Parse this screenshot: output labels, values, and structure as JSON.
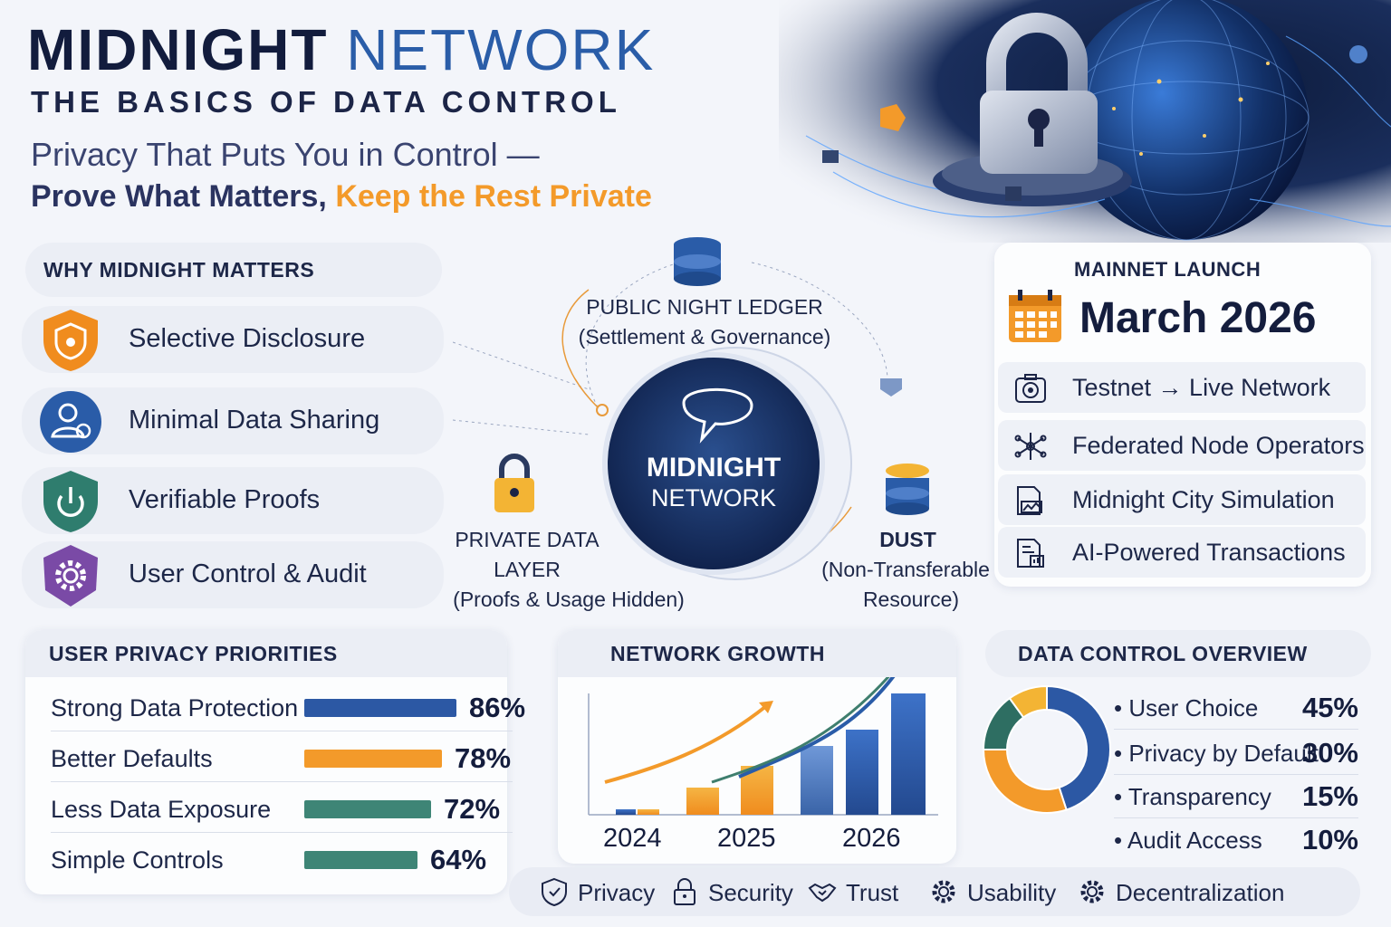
{
  "header": {
    "title_main": "MIDNIGHT",
    "title_accent": "NETWORK",
    "subtitle": "THE BASICS OF DATA CONTROL",
    "tagline_line1": "Privacy That Puts You in Control —",
    "tagline_bold": "Prove What Matters,",
    "tagline_orange": "Keep the Rest Private"
  },
  "why": {
    "heading": "WHY MIDNIGHT MATTERS",
    "items": [
      {
        "label": "Selective Disclosure",
        "icon": "shield-icon",
        "color": "#f08c1e"
      },
      {
        "label": "Minimal Data Sharing",
        "icon": "user-icon",
        "color": "#2a5ca8"
      },
      {
        "label": "Verifiable Proofs",
        "icon": "power-shield-icon",
        "color": "#2f7d6e"
      },
      {
        "label": "User Control & Audit",
        "icon": "gear-icon",
        "color": "#7a4aa6"
      }
    ]
  },
  "diagram": {
    "center_line1": "MIDNIGHT",
    "center_line2": "NETWORK",
    "ledger_title": "PUBLIC NIGHT LEDGER",
    "ledger_sub": "(Settlement & Governance)",
    "private_line1": "PRIVATE DATA",
    "private_line2": "LAYER",
    "private_sub": "(Proofs & Usage Hidden)",
    "dust_title": "DUST",
    "dust_sub1": "(Non-Transferable",
    "dust_sub2": "Resource)"
  },
  "mainnet": {
    "heading": "MAINNET LAUNCH",
    "date": "March 2026",
    "items": [
      {
        "label": "Testnet → Live Network",
        "icon": "camera-icon"
      },
      {
        "label": "Federated Node Operators",
        "icon": "network-nodes-icon"
      },
      {
        "label": "Midnight City Simulation",
        "icon": "city-simulation-icon"
      },
      {
        "label": "AI-Powered Transactions",
        "icon": "document-chart-icon"
      }
    ]
  },
  "priorities": {
    "heading": "USER PRIVACY PRIORITIES",
    "rows": [
      {
        "label": "Strong Data Protection",
        "pct": "86%",
        "value": 86,
        "color": "#2c58a4"
      },
      {
        "label": "Better Defaults",
        "pct": "78%",
        "value": 78,
        "color": "#f39a2a"
      },
      {
        "label": "Less Data Exposure",
        "pct": "72%",
        "value": 72,
        "color": "#3e8576"
      },
      {
        "label": "Simple Controls",
        "pct": "64%",
        "value": 64,
        "color": "#3e8576"
      }
    ]
  },
  "growth": {
    "heading": "NETWORK GROWTH",
    "years": [
      "2024",
      "2025",
      "2026"
    ]
  },
  "overview": {
    "heading": "DATA CONTROL OVERVIEW",
    "rows": [
      {
        "label": "User Choice",
        "pct": "45%",
        "value": 45,
        "color": "#2c58a4"
      },
      {
        "label": "Privacy by Default",
        "pct": "30%",
        "value": 30,
        "color": "#f39a2a"
      },
      {
        "label": "Transparency",
        "pct": "15%",
        "value": 15,
        "color": "#2e6e62"
      },
      {
        "label": "Audit Access",
        "pct": "10%",
        "value": 10,
        "color": "#f3b434"
      }
    ]
  },
  "footer": {
    "items": [
      {
        "label": "Privacy",
        "icon": "shield-icon"
      },
      {
        "label": "Security",
        "icon": "lock-icon"
      },
      {
        "label": "Trust",
        "icon": "handshake-icon"
      },
      {
        "label": "Usability",
        "icon": "gear-icon"
      },
      {
        "label": "Decentralization",
        "icon": "gear-icon"
      }
    ]
  }
}
